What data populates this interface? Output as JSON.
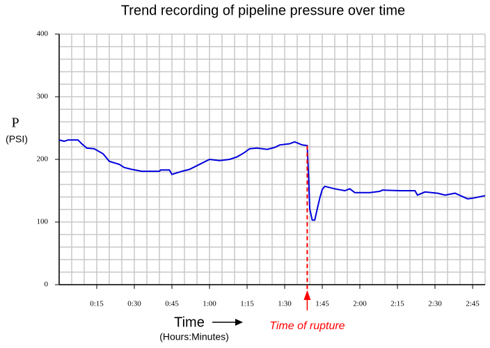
{
  "chart_data": {
    "type": "line",
    "title": "Trend recording of pipeline pressure over time",
    "y_label": "P",
    "y_unit": "(PSI)",
    "x_label": "Time",
    "x_unit": "(Hours:Minutes)",
    "x": [
      0,
      2,
      3.6,
      7.5,
      9,
      11,
      14,
      17.5,
      20,
      24,
      26,
      29,
      33,
      40,
      40.5,
      44,
      45,
      49,
      52,
      56,
      60,
      64,
      68,
      71,
      74,
      76,
      79,
      83,
      86,
      88,
      92,
      94,
      97,
      99,
      99.5,
      100,
      101,
      102,
      103,
      104,
      105,
      106,
      110,
      114,
      116,
      118,
      124,
      128,
      129,
      136,
      142,
      143,
      146,
      151,
      154,
      158,
      163,
      165,
      170
    ],
    "series": [
      {
        "color": "#0000dd",
        "values": [
          231,
          229,
          231,
          231,
          225,
          218,
          217,
          209,
          197,
          192,
          187,
          184,
          181,
          181,
          183,
          183,
          176,
          181,
          184,
          192,
          200,
          198,
          200,
          204,
          211,
          217,
          218,
          216,
          219,
          223,
          225,
          228,
          223,
          222,
          177,
          121,
          103,
          103,
          121,
          138,
          152,
          157,
          153,
          150,
          153,
          147,
          147,
          149,
          151,
          150,
          150,
          143,
          148,
          146,
          143,
          146,
          137,
          138,
          142
        ]
      }
    ],
    "xlim": [
      0,
      170
    ],
    "ylim": [
      0,
      400
    ],
    "xticks": [
      {
        "value": 15,
        "label": "0:15"
      },
      {
        "value": 30,
        "label": "0:30"
      },
      {
        "value": 45,
        "label": "0:45"
      },
      {
        "value": 60,
        "label": "1:00"
      },
      {
        "value": 75,
        "label": "1:15"
      },
      {
        "value": 90,
        "label": "1:30"
      },
      {
        "value": 105,
        "label": "1:45"
      },
      {
        "value": 120,
        "label": "2:00"
      },
      {
        "value": 135,
        "label": "2:15"
      },
      {
        "value": 150,
        "label": "2:30"
      },
      {
        "value": 165,
        "label": "2:45"
      }
    ],
    "yticks": [
      0,
      100,
      200,
      300,
      400
    ],
    "grid": true,
    "annotation": {
      "text": "Time of rupture",
      "x": 99,
      "color": "#ff0000"
    }
  }
}
